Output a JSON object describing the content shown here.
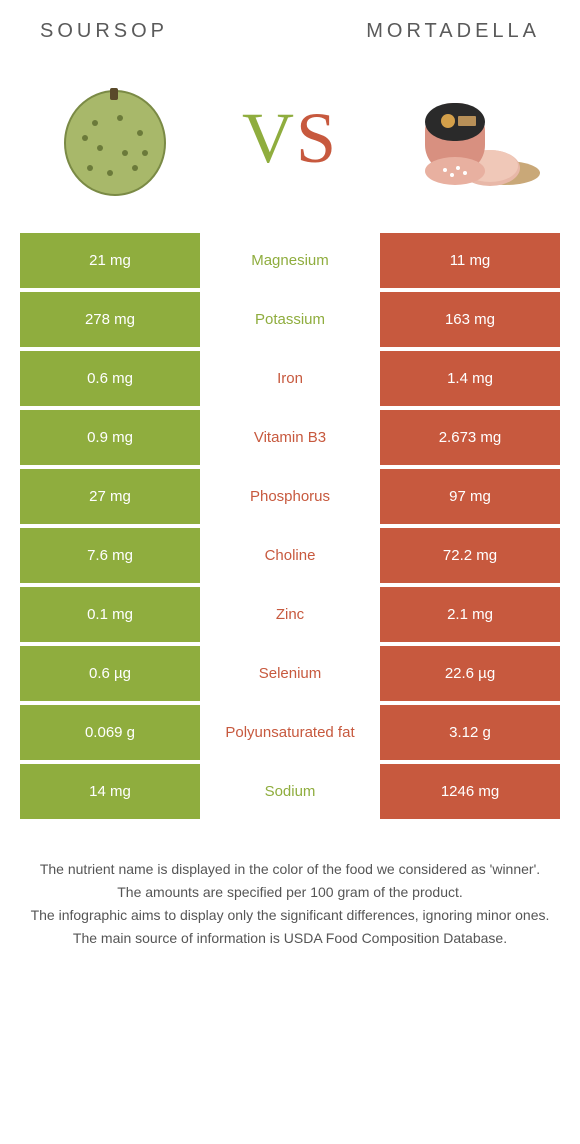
{
  "colors": {
    "left": "#8fad3e",
    "right": "#c7593e",
    "left_text": "#8fad3e",
    "right_text": "#c7593e"
  },
  "header": {
    "left_title": "SOURSOP",
    "right_title": "MORTADELLA",
    "vs_v": "V",
    "vs_s": "S"
  },
  "rows": [
    {
      "left": "21 mg",
      "label": "Magnesium",
      "right": "11 mg",
      "winner": "left"
    },
    {
      "left": "278 mg",
      "label": "Potassium",
      "right": "163 mg",
      "winner": "left"
    },
    {
      "left": "0.6 mg",
      "label": "Iron",
      "right": "1.4 mg",
      "winner": "right"
    },
    {
      "left": "0.9 mg",
      "label": "Vitamin B3",
      "right": "2.673 mg",
      "winner": "right"
    },
    {
      "left": "27 mg",
      "label": "Phosphorus",
      "right": "97 mg",
      "winner": "right"
    },
    {
      "left": "7.6 mg",
      "label": "Choline",
      "right": "72.2 mg",
      "winner": "right"
    },
    {
      "left": "0.1 mg",
      "label": "Zinc",
      "right": "2.1 mg",
      "winner": "right"
    },
    {
      "left": "0.6 µg",
      "label": "Selenium",
      "right": "22.6 µg",
      "winner": "right"
    },
    {
      "left": "0.069 g",
      "label": "Polyunsaturated fat",
      "right": "3.12 g",
      "winner": "right"
    },
    {
      "left": "14 mg",
      "label": "Sodium",
      "right": "1246 mg",
      "winner": "left"
    }
  ],
  "footer": {
    "line1": "The nutrient name is displayed in the color of the food we considered as 'winner'.",
    "line2": "The amounts are specified per 100 gram of the product.",
    "line3": "The infographic aims to display only the significant differences, ignoring minor ones.",
    "line4": "The main source of information is USDA Food Composition Database."
  }
}
